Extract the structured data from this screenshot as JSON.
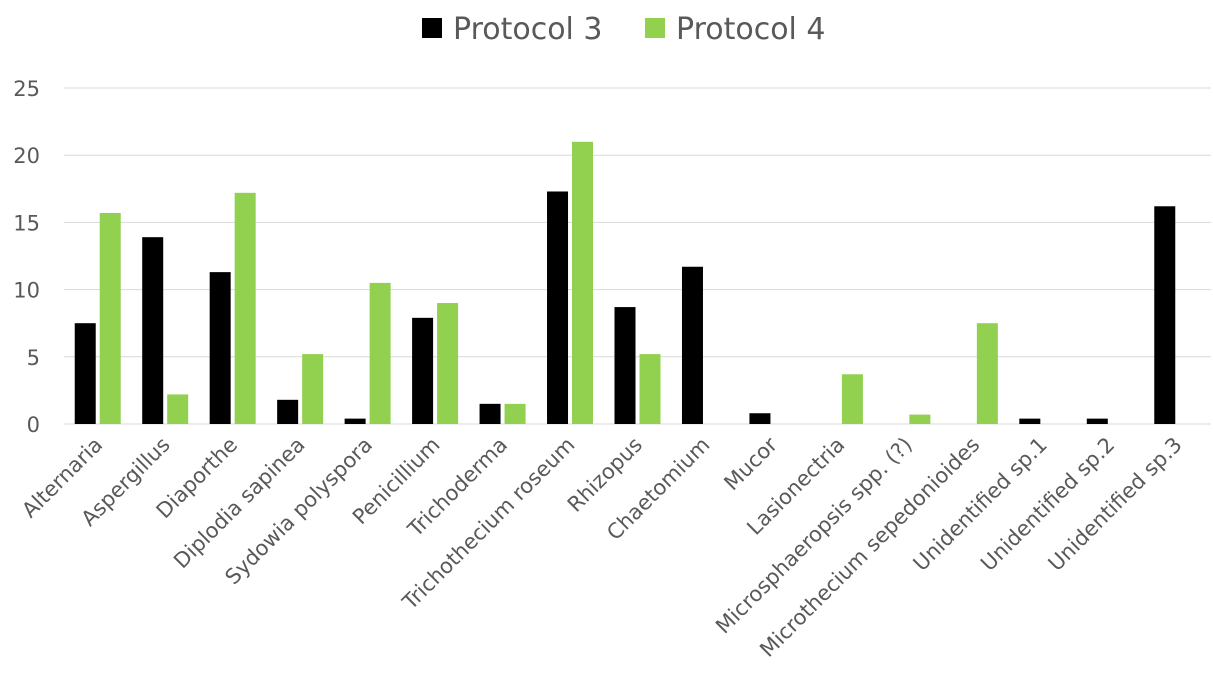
{
  "chart_data": {
    "type": "bar",
    "title": "",
    "xlabel": "",
    "ylabel": "",
    "ylim": [
      0,
      25
    ],
    "yticks": [
      0,
      5,
      10,
      15,
      20,
      25
    ],
    "grid": true,
    "legend_position": "top-center",
    "categories": [
      "Alternaria",
      "Aspergillus",
      "Diaporthe",
      "Diplodia sapinea",
      "Sydowia polyspora",
      "Penicillium",
      "Trichoderma",
      "Trichothecium roseum",
      "Rhizopus",
      "Chaetomium",
      "Mucor",
      "Lasionectria",
      "Microsphaeropsis spp.  (?)",
      "Microthecium sepedonioides",
      "Unidentified sp.1",
      "Unidentified sp.2",
      "Unidentified sp.3"
    ],
    "series": [
      {
        "name": "Protocol 3",
        "color": "#000000",
        "values": [
          7.5,
          13.9,
          11.3,
          1.8,
          0.4,
          7.9,
          1.5,
          17.3,
          8.7,
          11.7,
          0.8,
          0,
          0,
          0,
          0.4,
          0.4,
          16.2
        ]
      },
      {
        "name": "Protocol 4",
        "color": "#92d050",
        "values": [
          15.7,
          2.2,
          17.2,
          5.2,
          10.5,
          9.0,
          1.5,
          21.0,
          5.2,
          0,
          0,
          3.7,
          0.7,
          7.5,
          0,
          0,
          0
        ]
      }
    ]
  }
}
